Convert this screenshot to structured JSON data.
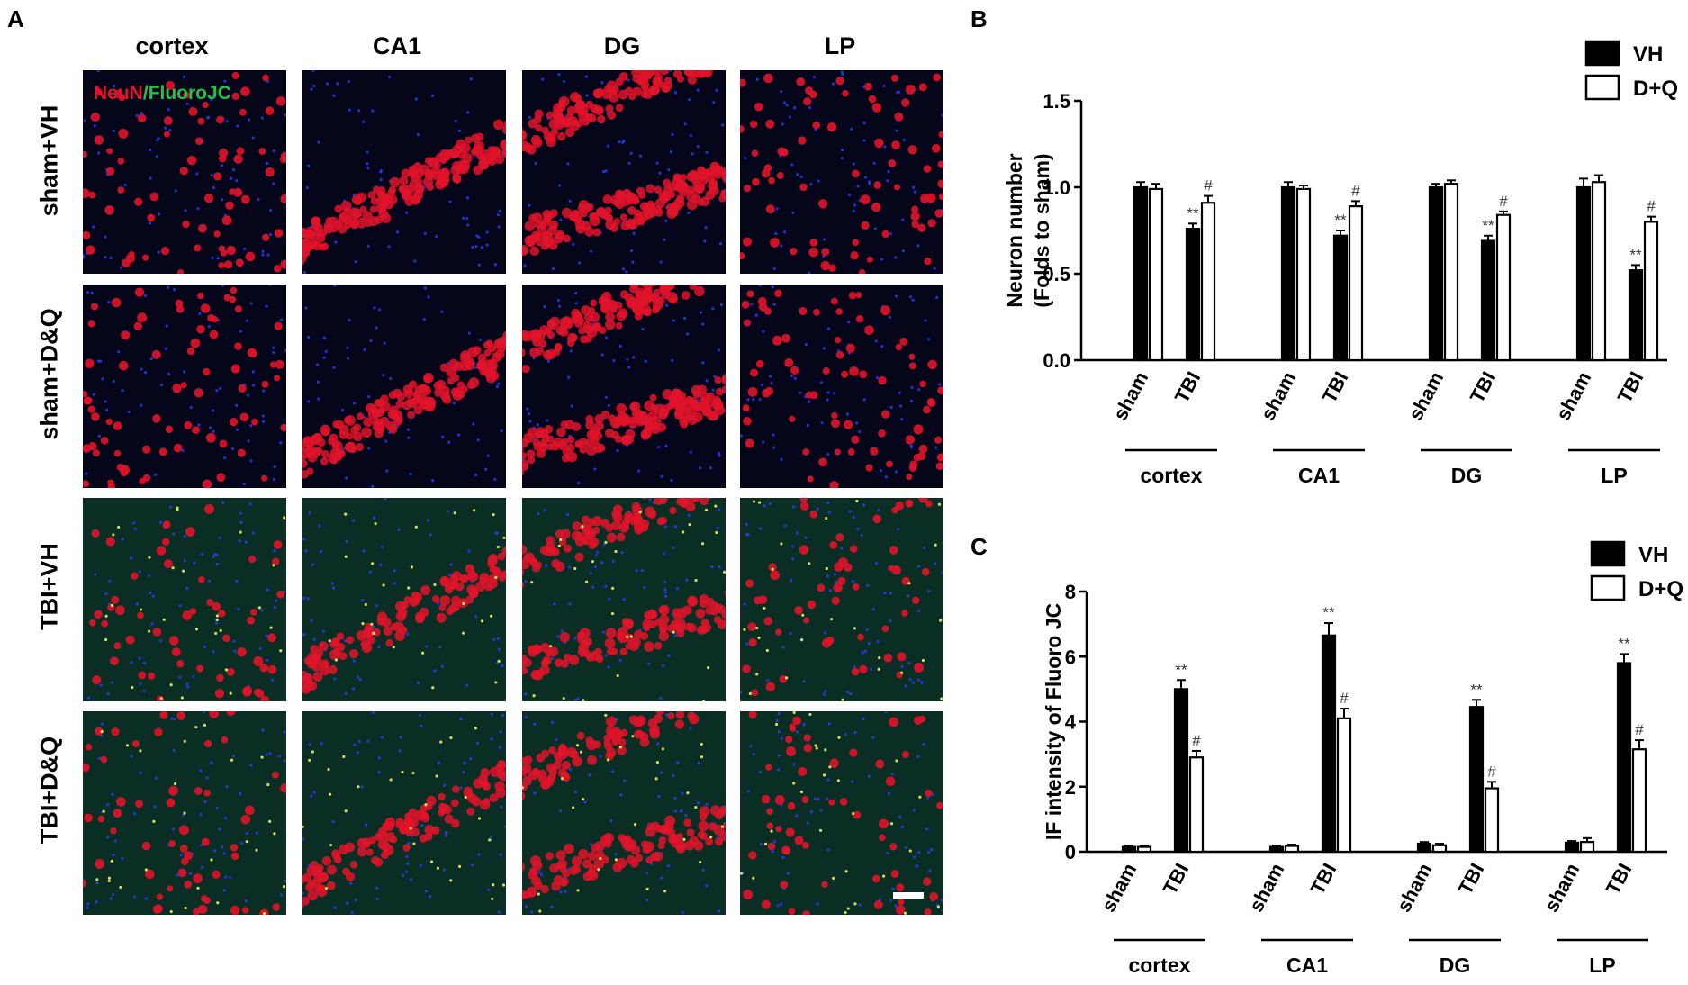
{
  "panels": {
    "a": "A",
    "b": "B",
    "c": "C"
  },
  "micrograph": {
    "columns": [
      "cortex",
      "CA1",
      "DG",
      "LP"
    ],
    "rows": [
      "sham+VH",
      "sham+D&Q",
      "TBI+VH",
      "TBI+D&Q"
    ],
    "stain_neun": "NeuN",
    "stain_sep": "/",
    "stain_fluorojc": "FluoroJC",
    "colors": {
      "neun": "#e0142a",
      "fluorojc": "#26c04a",
      "nuclei": "#2a3cff",
      "background": "#05061a"
    }
  },
  "chart_data": [
    {
      "type": "bar",
      "panel": "B",
      "ylabel_line1": "Neuron number",
      "ylabel_line2": "(Folds to sham)",
      "ylim": [
        0,
        1.5
      ],
      "yticks": [
        "0.0",
        "0.5",
        "1.0",
        "1.5"
      ],
      "groups": [
        "cortex",
        "CA1",
        "DG",
        "LP"
      ],
      "categories": [
        "sham",
        "TBI"
      ],
      "legend": [
        "VH",
        "D+Q"
      ],
      "series": [
        {
          "name": "VH",
          "color": "#000000",
          "values": [
            [
              1.0,
              0.76
            ],
            [
              1.0,
              0.72
            ],
            [
              1.0,
              0.69
            ],
            [
              1.0,
              0.52
            ]
          ],
          "errors": [
            [
              0.03,
              0.03
            ],
            [
              0.03,
              0.03
            ],
            [
              0.02,
              0.03
            ],
            [
              0.05,
              0.03
            ]
          ]
        },
        {
          "name": "D+Q",
          "color": "#ffffff",
          "values": [
            [
              0.99,
              0.91
            ],
            [
              0.99,
              0.89
            ],
            [
              1.02,
              0.84
            ],
            [
              1.03,
              0.8
            ]
          ],
          "errors": [
            [
              0.03,
              0.04
            ],
            [
              0.02,
              0.03
            ],
            [
              0.02,
              0.02
            ],
            [
              0.04,
              0.03
            ]
          ]
        }
      ],
      "annotations": {
        "vh_tbi": "**",
        "dq_tbi": "#"
      }
    },
    {
      "type": "bar",
      "panel": "C",
      "ylabel": "IF intensity of Fluoro JC",
      "ylim": [
        0,
        8
      ],
      "yticks": [
        "0",
        "2",
        "4",
        "6",
        "8"
      ],
      "groups": [
        "cortex",
        "CA1",
        "DG",
        "LP"
      ],
      "categories": [
        "sham",
        "TBI"
      ],
      "legend": [
        "VH",
        "D+Q"
      ],
      "series": [
        {
          "name": "VH",
          "color": "#000000",
          "values": [
            [
              0.15,
              5.0
            ],
            [
              0.15,
              6.65
            ],
            [
              0.25,
              4.45
            ],
            [
              0.28,
              5.8
            ]
          ],
          "errors": [
            [
              0.04,
              0.28
            ],
            [
              0.04,
              0.38
            ],
            [
              0.05,
              0.22
            ],
            [
              0.05,
              0.28
            ]
          ]
        },
        {
          "name": "D+Q",
          "color": "#ffffff",
          "values": [
            [
              0.15,
              2.9
            ],
            [
              0.18,
              4.1
            ],
            [
              0.2,
              1.95
            ],
            [
              0.3,
              3.15
            ]
          ],
          "errors": [
            [
              0.04,
              0.2
            ],
            [
              0.04,
              0.3
            ],
            [
              0.05,
              0.2
            ],
            [
              0.12,
              0.28
            ]
          ]
        }
      ],
      "annotations": {
        "vh_tbi": "**",
        "dq_tbi": "#"
      }
    }
  ]
}
